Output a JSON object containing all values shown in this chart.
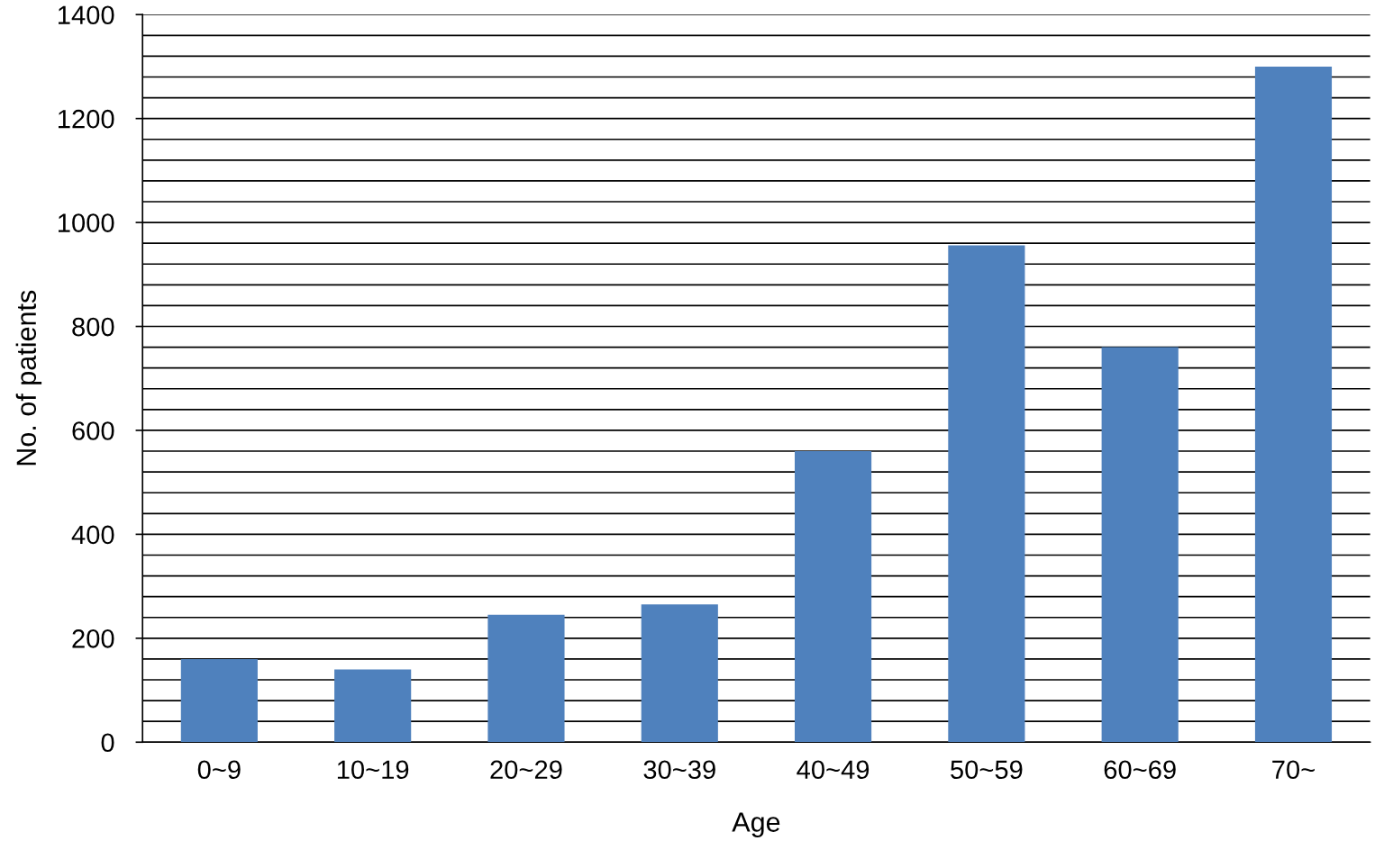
{
  "chart_data": {
    "type": "bar",
    "xlabel": "Age",
    "ylabel": "No. of patients",
    "categories": [
      "0~9",
      "10~19",
      "20~29",
      "30~39",
      "40~49",
      "50~59",
      "60~69",
      "70~"
    ],
    "values": [
      160,
      140,
      245,
      265,
      560,
      956,
      760,
      1300
    ],
    "color": "#4f81bd",
    "ylim": [
      0,
      1400
    ],
    "yticks": [
      0,
      {
        "value": 40,
        "label": null
      },
      {
        "value": 80,
        "label": null
      },
      {
        "value": 120,
        "label": null
      },
      {
        "value": 160,
        "label": null
      },
      200,
      {
        "value": 240,
        "label": null
      },
      {
        "value": 280,
        "label": null
      },
      {
        "value": 320,
        "label": null
      },
      {
        "value": 360,
        "label": null
      },
      400,
      {
        "value": 440,
        "label": null
      },
      {
        "value": 480,
        "label": null
      },
      {
        "value": 520,
        "label": null
      },
      {
        "value": 560,
        "label": null
      },
      600,
      {
        "value": 640,
        "label": null
      },
      {
        "value": 680,
        "label": null
      },
      {
        "value": 720,
        "label": null
      },
      {
        "value": 760,
        "label": null
      },
      800,
      {
        "value": 840,
        "label": null
      },
      {
        "value": 880,
        "label": null
      },
      {
        "value": 920,
        "label": null
      },
      {
        "value": 960,
        "label": null
      },
      1000,
      {
        "value": 1040,
        "label": null
      },
      {
        "value": 1080,
        "label": null
      },
      {
        "value": 1120,
        "label": null
      },
      {
        "value": 1160,
        "label": null
      },
      1200,
      {
        "value": 1240,
        "label": null
      },
      {
        "value": 1280,
        "label": null
      },
      {
        "value": 1320,
        "label": null
      },
      {
        "value": 1360,
        "label": null
      },
      1400
    ],
    "grid": "y",
    "legend": false
  }
}
